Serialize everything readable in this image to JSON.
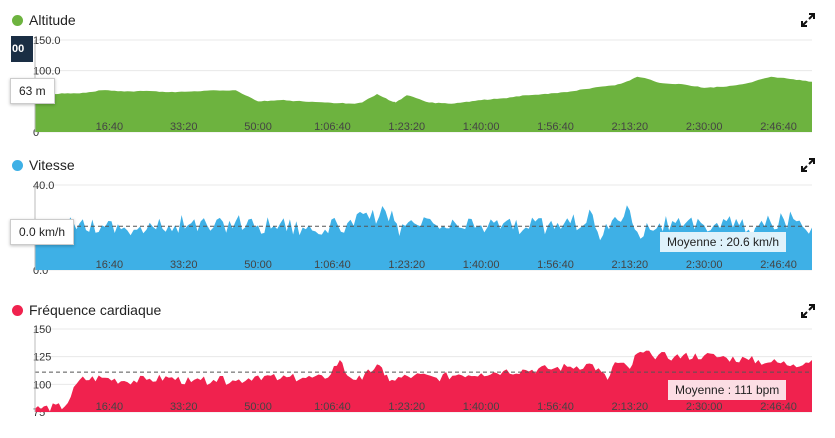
{
  "colors": {
    "altitude": "#6db33f",
    "speed": "#3eb0e6",
    "hr": "#f0224e",
    "grid": "#e8e8e8",
    "tick": "#444"
  },
  "icons": {
    "expand": "expand-arrows-icon"
  },
  "x_ticks": [
    "16:40",
    "33:20",
    "50:00",
    "1:06:40",
    "1:23:20",
    "1:40:00",
    "1:56:40",
    "2:13:20",
    "2:30:00",
    "2:46:40"
  ],
  "cursor_label": "00",
  "chart_data": [
    {
      "id": "altitude",
      "type": "area",
      "title": "Altitude",
      "ylim": [
        0,
        150
      ],
      "y_ticks": [
        "0",
        "100.0",
        "150.0"
      ],
      "y_tick_values": [
        0,
        100,
        150
      ],
      "x_unit": "seconds",
      "x": [
        0,
        600,
        900,
        1200,
        1500,
        1800,
        2100,
        2400,
        2700,
        3000,
        3300,
        3600,
        3900,
        4100,
        4300,
        4400,
        4600,
        4800,
        4850,
        5000,
        5300,
        5600,
        6000,
        6300,
        6600,
        6900,
        7200,
        7500,
        7800,
        8000,
        8100,
        8200,
        8400,
        8700,
        9000,
        9300,
        9600,
        9900,
        10200,
        10450
      ],
      "values": [
        62,
        63,
        68,
        66,
        67,
        65,
        66,
        68,
        68,
        50,
        52,
        50,
        48,
        47,
        46,
        48,
        62,
        50,
        48,
        60,
        48,
        46,
        52,
        55,
        60,
        62,
        66,
        72,
        76,
        84,
        90,
        88,
        80,
        78,
        72,
        74,
        80,
        90,
        86,
        82
      ],
      "tooltip": "63 m"
    },
    {
      "id": "speed",
      "type": "area",
      "title": "Vitesse",
      "ylim": [
        0,
        40
      ],
      "y_ticks": [
        "0.0",
        "40.0"
      ],
      "y_tick_values": [
        0,
        40
      ],
      "x_unit": "seconds",
      "x": [
        0,
        300,
        600,
        900,
        1200,
        1500,
        1800,
        2100,
        2400,
        2700,
        3000,
        3300,
        3600,
        3900,
        4200,
        4500,
        4800,
        4900,
        5100,
        5400,
        5700,
        6000,
        6300,
        6600,
        6900,
        7200,
        7500,
        7600,
        7800,
        8000,
        8100,
        8400,
        8700,
        9000,
        9300,
        9600,
        9900,
        10200,
        10450
      ],
      "values": [
        18,
        20,
        22,
        21,
        20,
        19,
        21,
        22,
        20,
        23,
        21,
        22,
        20,
        19,
        22,
        24,
        28,
        16,
        22,
        21,
        20,
        21,
        22,
        20,
        21,
        22,
        26,
        14,
        25,
        28,
        18,
        22,
        20,
        21,
        23,
        19,
        22,
        24,
        20
      ],
      "average": 20.6,
      "average_label": "Moyenne : 20.6 km/h",
      "tooltip": "0.0 km/h"
    },
    {
      "id": "hr",
      "type": "area",
      "title": "Fréquence cardiaque",
      "ylim": [
        75,
        150
      ],
      "y_ticks": [
        "75",
        "100",
        "125",
        "150"
      ],
      "y_tick_values": [
        75,
        100,
        125,
        150
      ],
      "x_unit": "seconds",
      "x": [
        0,
        400,
        600,
        900,
        1200,
        1500,
        1800,
        2100,
        2400,
        2700,
        3000,
        3300,
        3600,
        3900,
        4100,
        4200,
        4400,
        4600,
        4700,
        4800,
        5100,
        5400,
        5700,
        6000,
        6300,
        6600,
        6900,
        7200,
        7500,
        7700,
        7800,
        8000,
        8100,
        8300,
        8600,
        9000,
        9300,
        9600,
        9900,
        10200,
        10450
      ],
      "values": [
        78,
        80,
        104,
        106,
        103,
        104,
        106,
        102,
        104,
        103,
        108,
        105,
        106,
        105,
        122,
        108,
        104,
        118,
        108,
        104,
        108,
        106,
        109,
        110,
        112,
        113,
        114,
        116,
        118,
        104,
        120,
        114,
        128,
        126,
        125,
        126,
        124,
        122,
        120,
        118,
        122
      ],
      "average": 111,
      "average_label": "Moyenne : 111 bpm"
    }
  ]
}
